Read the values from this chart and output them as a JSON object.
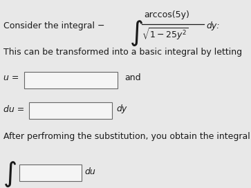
{
  "bg_color": "#e8e8e8",
  "text_color": "#1a1a1a",
  "box_color": "#f5f5f5",
  "box_edge_color": "#666666",
  "font_size": 9,
  "font_size_math": 9,
  "line1_text": "Consider the integral −",
  "line2_text": "This can be transformed into a basic integral by letting",
  "and_text": "and",
  "dy_text": "dy",
  "dy_colon": "dy:",
  "du_text": "du",
  "line4_text": "After perfroming the substitution, you obtain the integral",
  "u_label": "u =",
  "du_label": "du ="
}
